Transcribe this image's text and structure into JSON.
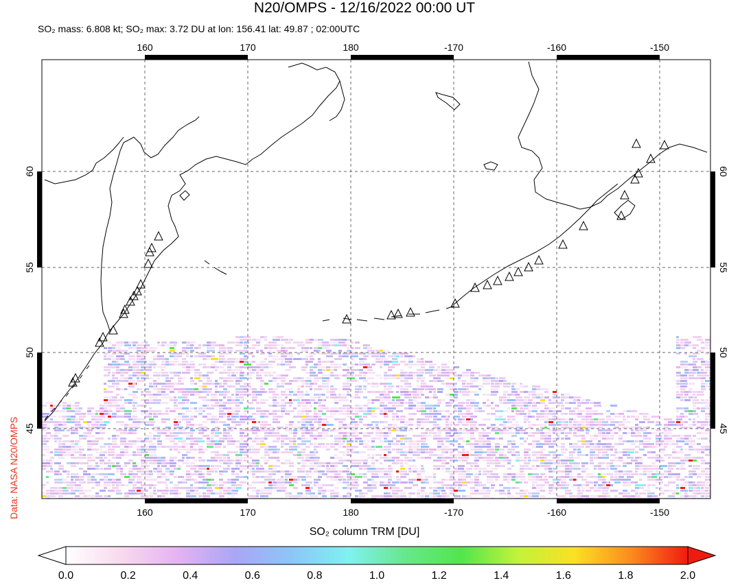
{
  "header": {
    "title": "N20/OMPS - 12/16/2022 00:00 UT",
    "subtitle": "SO₂ mass: 6.808 kt; SO₂ max: 3.72 DU at lon: 156.41 lat: 49.87 ; 02:00UTC"
  },
  "credit": "Data: NASA N20/OMPS",
  "map": {
    "lon_ticks": [
      "160",
      "170",
      "180",
      "-170",
      "-160",
      "-150"
    ],
    "lat_ticks": [
      "60",
      "55",
      "50",
      "45"
    ],
    "grid": "dashed",
    "volcano_marker": "triangle-icon",
    "coast_color": "#000000"
  },
  "colorbar": {
    "title": "SO₂ column TRM [DU]",
    "ticks": [
      "0.0",
      "0.2",
      "0.4",
      "0.6",
      "0.8",
      "1.0",
      "1.2",
      "1.4",
      "1.6",
      "1.8",
      "2.0"
    ],
    "stops": [
      "#ffffff",
      "#f8d8ee",
      "#e4b2f2",
      "#a9a6f6",
      "#8cc6f8",
      "#7ff2f0",
      "#66e88c",
      "#52e64b",
      "#c2f33b",
      "#fbe025",
      "#fb8b1e",
      "#f01b10"
    ],
    "under_color": "#ffffff",
    "over_color": "#f01b10"
  }
}
